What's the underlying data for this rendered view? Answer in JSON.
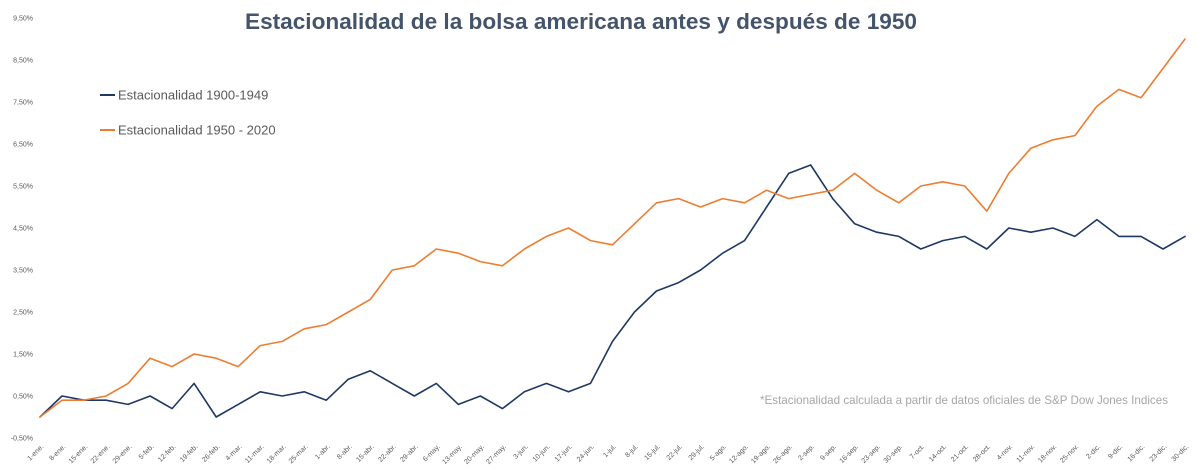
{
  "chart_data": {
    "type": "line",
    "title": "Estacionalidad de la bolsa americana antes y después de 1950",
    "categories": [
      "1-ene.",
      "8-ene.",
      "15-ene.",
      "22-ene.",
      "29-ene.",
      "5-feb.",
      "12-feb.",
      "19-feb.",
      "26-feb.",
      "4-mar.",
      "11-mar.",
      "18-mar.",
      "25-mar.",
      "1-abr.",
      "8-abr.",
      "15-abr.",
      "22-abr.",
      "29-abr.",
      "6-may.",
      "13-may.",
      "20-may.",
      "27-may.",
      "3-jun.",
      "10-jun.",
      "17-jun.",
      "24-jun.",
      "1-jul.",
      "8-jul.",
      "15-jul.",
      "22-jul.",
      "29-jul.",
      "5-ago.",
      "12-ago.",
      "19-ago.",
      "26-ago.",
      "2-sep.",
      "9-sep.",
      "16-sep.",
      "23-sep.",
      "30-sep.",
      "7-oct.",
      "14-oct.",
      "21-oct.",
      "28-oct.",
      "4-nov.",
      "11-nov.",
      "18-nov.",
      "25-nov.",
      "2-dic.",
      "9-dic.",
      "16-dic.",
      "23-dic.",
      "30-dic."
    ],
    "series": [
      {
        "name": "Estacionalidad 1900-1949",
        "color": "#1F3864",
        "values": [
          0.0,
          0.5,
          0.4,
          0.4,
          0.3,
          0.5,
          0.2,
          0.8,
          0.0,
          0.3,
          0.6,
          0.5,
          0.6,
          0.4,
          0.9,
          1.1,
          0.8,
          0.5,
          0.8,
          0.3,
          0.5,
          0.2,
          0.6,
          0.8,
          0.6,
          0.8,
          1.8,
          2.5,
          3.0,
          3.2,
          3.5,
          3.9,
          4.2,
          5.0,
          5.8,
          6.0,
          5.2,
          4.6,
          4.4,
          4.3,
          4.0,
          4.2,
          4.3,
          4.0,
          4.5,
          4.4,
          4.5,
          4.3,
          4.7,
          4.3,
          4.3,
          4.0,
          4.3
        ]
      },
      {
        "name": "Estacionalidad 1950 - 2020",
        "color": "#ED7D31",
        "values": [
          0.0,
          0.4,
          0.4,
          0.5,
          0.8,
          1.4,
          1.2,
          1.5,
          1.4,
          1.2,
          1.7,
          1.8,
          2.1,
          2.2,
          2.5,
          2.8,
          3.5,
          3.6,
          4.0,
          3.9,
          3.7,
          3.6,
          4.0,
          4.3,
          4.5,
          4.2,
          4.1,
          4.6,
          5.1,
          5.2,
          5.0,
          5.2,
          5.1,
          5.4,
          5.2,
          5.3,
          5.4,
          5.8,
          5.4,
          5.1,
          5.5,
          5.6,
          5.5,
          4.9,
          5.8,
          6.4,
          6.6,
          6.7,
          7.4,
          7.8,
          7.6,
          8.3,
          9.0
        ]
      }
    ],
    "y_ticks": [
      -0.5,
      0.5,
      1.5,
      2.5,
      3.5,
      4.5,
      5.5,
      6.5,
      7.5,
      8.5,
      9.5
    ],
    "y_tick_labels": [
      "-0,50%",
      "0,50%",
      "1,50%",
      "2,50%",
      "3,50%",
      "4,50%",
      "5,50%",
      "6,50%",
      "7,50%",
      "8,50%",
      "9,50%"
    ],
    "ylim": [
      -0.5,
      9.5
    ],
    "y_unit": "%",
    "grid": false,
    "legend": "top-left",
    "note": "*Estacionalidad calculada a partir de datos oficiales de S&P Dow Jones Indices"
  }
}
